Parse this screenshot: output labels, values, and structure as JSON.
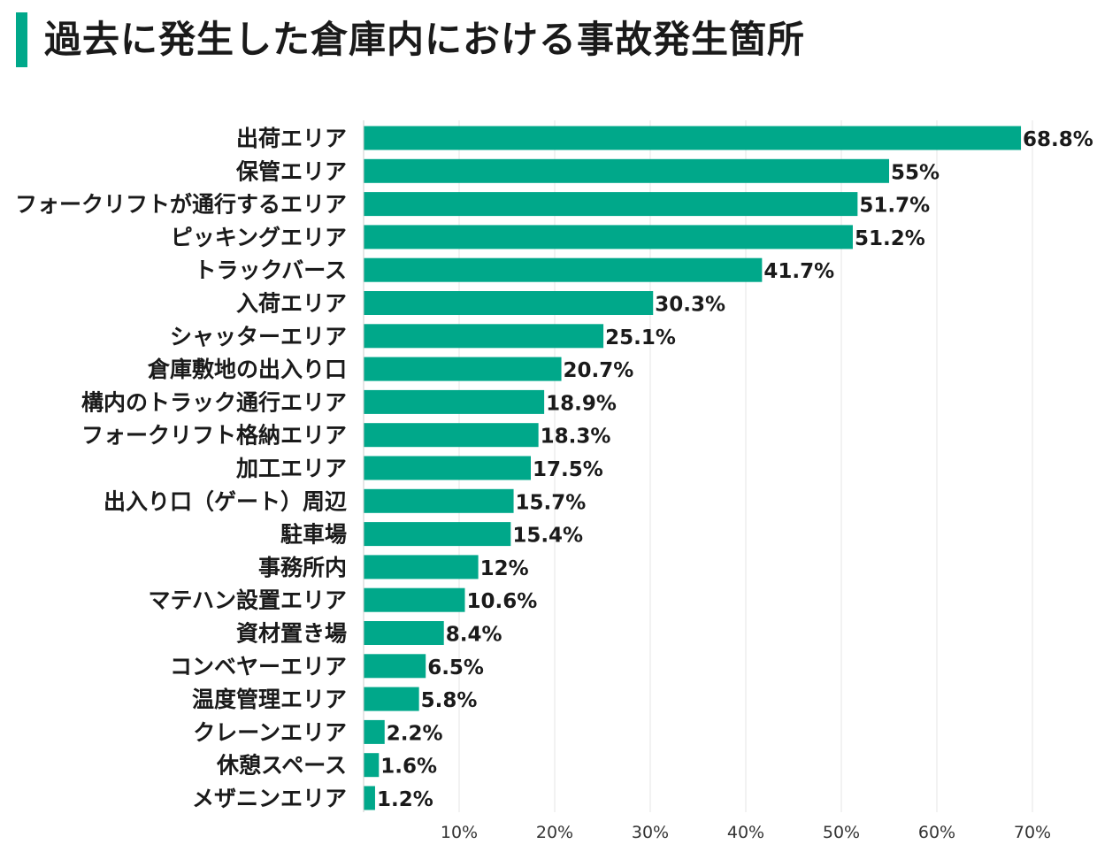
{
  "title": "過去に発生した倉庫内における事故発生箇所",
  "colors": {
    "accent": "#00a88a",
    "bar": "#00a88a",
    "grid": "#e6e6e6",
    "axis": "#cccccc",
    "text": "#1a1a1a"
  },
  "chart_data": {
    "type": "bar",
    "orientation": "horizontal",
    "title": "過去に発生した倉庫内における事故発生箇所",
    "categories": [
      "出荷エリア",
      "保管エリア",
      "フォークリフトが通行するエリア",
      "ピッキングエリア",
      "トラックバース",
      "入荷エリア",
      "シャッターエリア",
      "倉庫敷地の出入り口",
      "構内のトラック通行エリア",
      "フォークリフト格納エリア",
      "加工エリア",
      "出入り口（ゲート）周辺",
      "駐車場",
      "事務所内",
      "マテハン設置エリア",
      "資材置き場",
      "コンベヤーエリア",
      "温度管理エリア",
      "クレーンエリア",
      "休憩スペース",
      "メザニンエリア"
    ],
    "values": [
      68.8,
      55,
      51.7,
      51.2,
      41.7,
      30.3,
      25.1,
      20.7,
      18.9,
      18.3,
      17.5,
      15.7,
      15.4,
      12,
      10.6,
      8.4,
      6.5,
      5.8,
      2.2,
      1.6,
      1.2
    ],
    "value_labels": [
      "68.8%",
      "55%",
      "51.7%",
      "51.2%",
      "41.7%",
      "30.3%",
      "25.1%",
      "20.7%",
      "18.9%",
      "18.3%",
      "17.5%",
      "15.7%",
      "15.4%",
      "12%",
      "10.6%",
      "8.4%",
      "6.5%",
      "5.8%",
      "2.2%",
      "1.6%",
      "1.2%"
    ],
    "x_ticks": [
      10,
      20,
      30,
      40,
      50,
      60,
      70
    ],
    "x_tick_labels": [
      "10%",
      "20%",
      "30%",
      "40%",
      "50%",
      "60%",
      "70%"
    ],
    "xlim": [
      0,
      75
    ],
    "xlabel": "",
    "ylabel": "",
    "grid": true,
    "legend": "none"
  }
}
